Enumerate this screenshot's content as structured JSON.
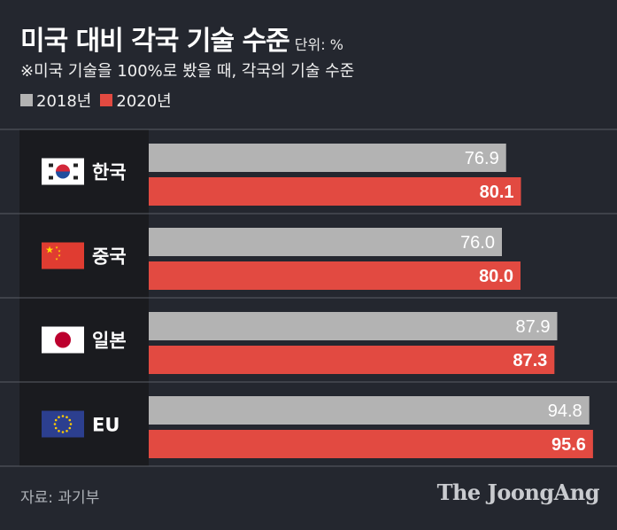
{
  "title": "미국 대비 각국 기술 수준",
  "unit_label": "단위: %",
  "subtitle": "※미국 기술을 100%로 봤을 때, 각국의 기술 수준",
  "source": "자료: 과기부",
  "brand": "The JoongAng",
  "colors": {
    "background": "#24272f",
    "bar_2018": "#b3b3b3",
    "bar_2020": "#e24a41",
    "label_panel": "#1a1b1f"
  },
  "chart_data": {
    "type": "bar",
    "orientation": "horizontal",
    "title": "미국 대비 각국 기술 수준",
    "subtitle": "※미국 기술을 100%로 봤을 때, 각국의 기술 수준",
    "unit": "%",
    "categories": [
      "한국",
      "중국",
      "일본",
      "EU"
    ],
    "flags": [
      "korea-flag",
      "china-flag",
      "japan-flag",
      "eu-flag"
    ],
    "series": [
      {
        "name": "2018년",
        "values": [
          76.9,
          76.0,
          87.9,
          94.8
        ],
        "labels": [
          "76.9",
          "76.0",
          "87.9",
          "94.8"
        ]
      },
      {
        "name": "2020년",
        "values": [
          80.1,
          80.0,
          87.3,
          95.6
        ],
        "labels": [
          "80.1",
          "80.0",
          "87.3",
          "95.6"
        ]
      }
    ],
    "xlim": [
      0,
      100
    ],
    "legend": "top-left"
  }
}
